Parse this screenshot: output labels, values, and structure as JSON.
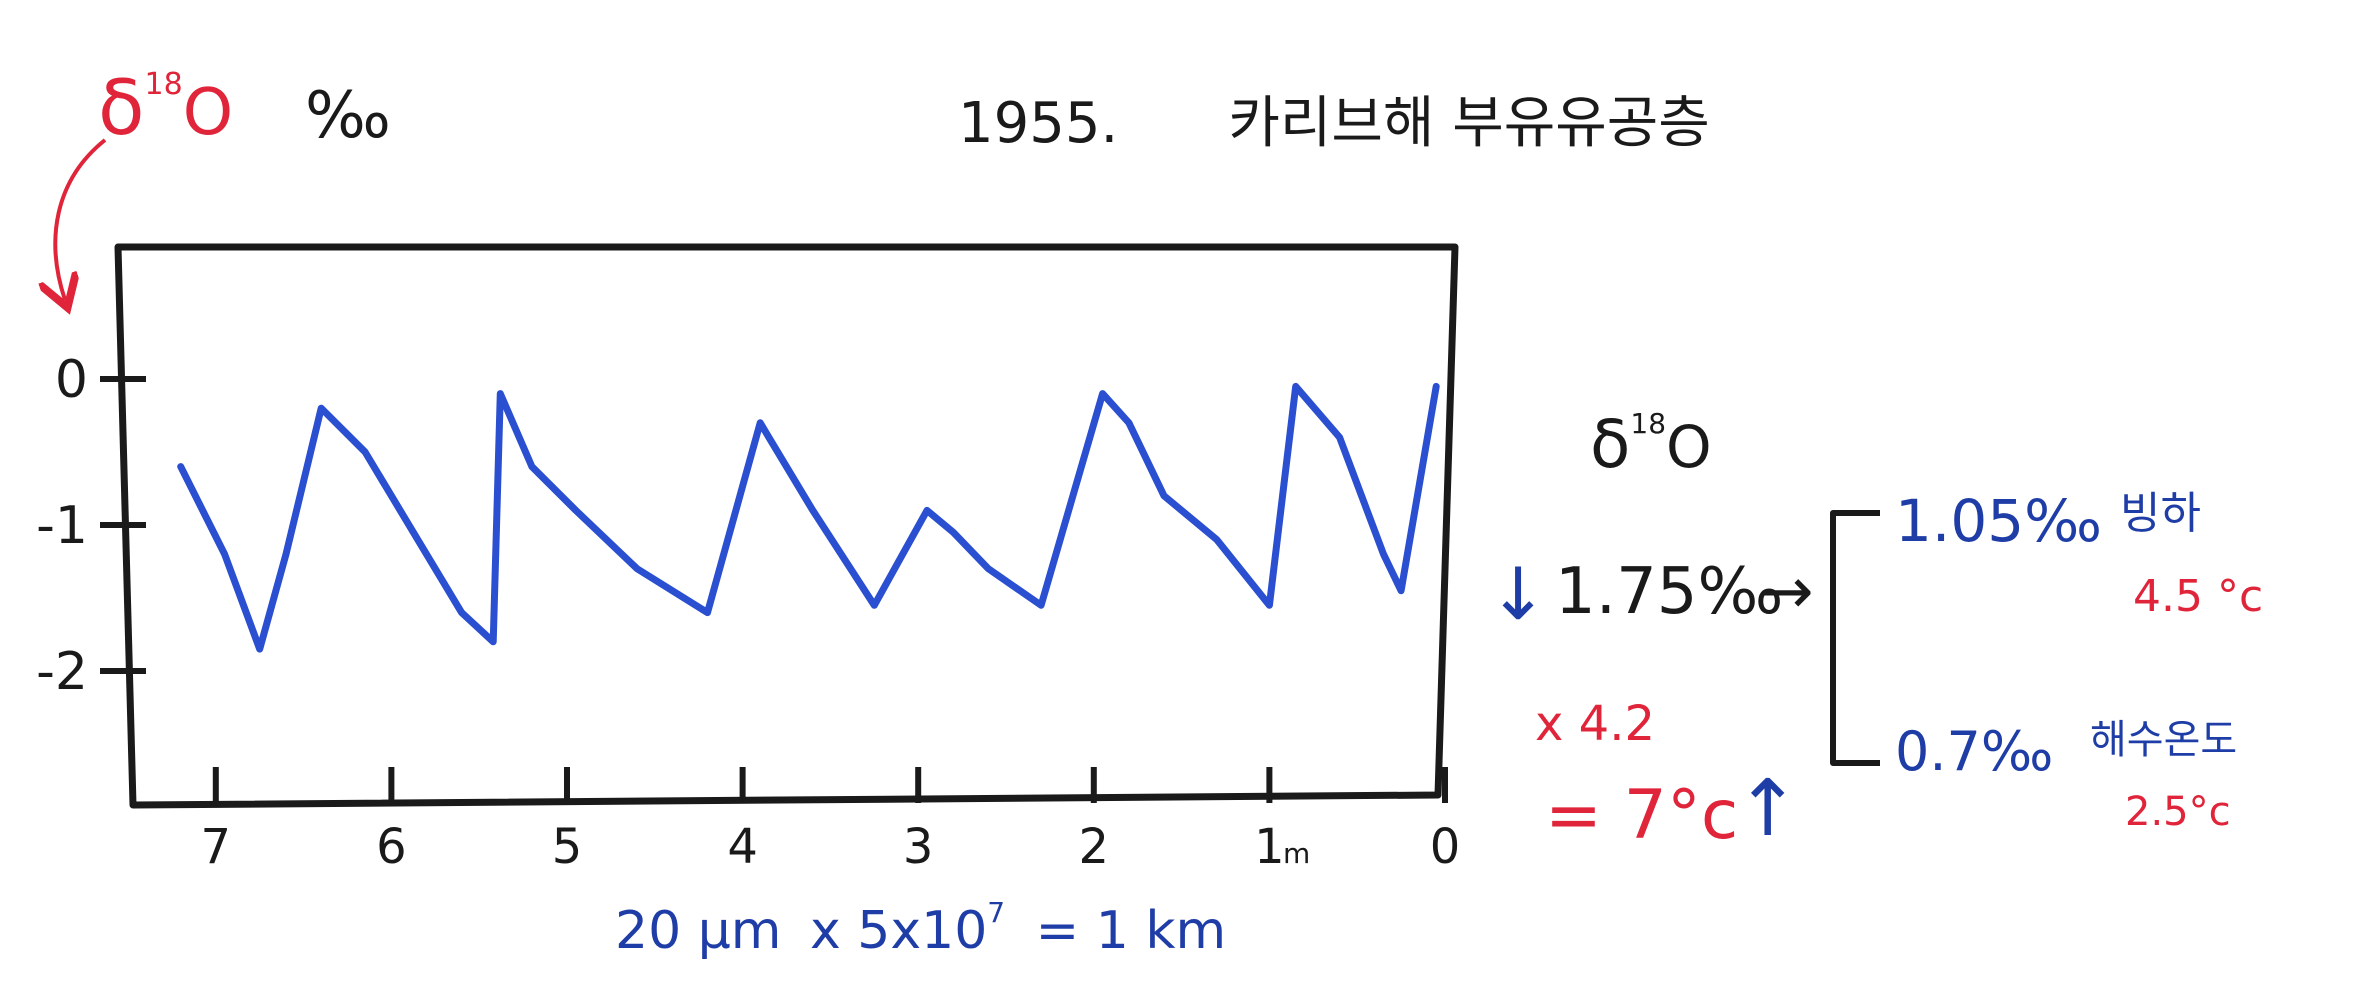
{
  "title": {
    "year": "1955.",
    "text": "카리브해 부유유공층"
  },
  "axis_label": {
    "delta": "δ",
    "sup": "18",
    "o": "O",
    "unit": "‰"
  },
  "scale_note": {
    "left": "20 μm",
    "mid": "x 5x10",
    "exp": "7",
    "right": "= 1 km"
  },
  "side_panel": {
    "delta_heading": {
      "delta": "δ",
      "sup": "18",
      "o": "O"
    },
    "change": "1.75‰",
    "down_arrow": "↓",
    "right_arrow": "→",
    "multiplier": "x 4.2",
    "result": "= 7°c",
    "up_arrow": "↑",
    "glacier": {
      "value": "1.05‰",
      "label": "빙하",
      "temp": "4.5 °c"
    },
    "sea": {
      "value": "0.7‰",
      "label": "해수온도",
      "temp": "2.5°c"
    }
  },
  "colors": {
    "ink": "#1a1a1a",
    "blue": "#1f3da6",
    "red": "#e0243a",
    "line": "#2a4fd0"
  },
  "chart_data": {
    "type": "line",
    "title": "1955. 카리브해 부유유공층",
    "ylabel": "δ18O ‰",
    "xlabel": "",
    "x_unit_label": "m",
    "xlim": [
      7.5,
      0
    ],
    "ylim": [
      -2.85,
      0.85
    ],
    "xticks": [
      7,
      6,
      5,
      4,
      3,
      2,
      1,
      0
    ],
    "xtick_labels": [
      "7",
      "6",
      "5",
      "4",
      "3",
      "2",
      "1",
      "0"
    ],
    "yticks": [
      0,
      -1,
      -2
    ],
    "ytick_labels": [
      "0",
      "-1",
      "-2"
    ],
    "grid": false,
    "series": [
      {
        "x": [
          7.2,
          6.95,
          6.75,
          6.6,
          6.4,
          6.15,
          5.85,
          5.6,
          5.42,
          5.38,
          5.2,
          4.95,
          4.6,
          4.2,
          3.9,
          3.85,
          3.6,
          3.25,
          2.95,
          2.8,
          2.6,
          2.3,
          1.95,
          1.8,
          1.6,
          1.3,
          1.0,
          0.85,
          0.6,
          0.35,
          0.25,
          0.05
        ],
        "y": [
          -0.6,
          -1.2,
          -1.85,
          -1.2,
          -0.2,
          -0.5,
          -1.1,
          -1.6,
          -1.8,
          -0.1,
          -0.6,
          -0.9,
          -1.3,
          -1.6,
          -0.3,
          -0.4,
          -0.9,
          -1.55,
          -0.9,
          -1.05,
          -1.3,
          -1.55,
          -0.1,
          -0.3,
          -0.8,
          -1.1,
          -1.55,
          -0.05,
          -0.4,
          -1.2,
          -1.45,
          -0.05
        ]
      }
    ]
  }
}
